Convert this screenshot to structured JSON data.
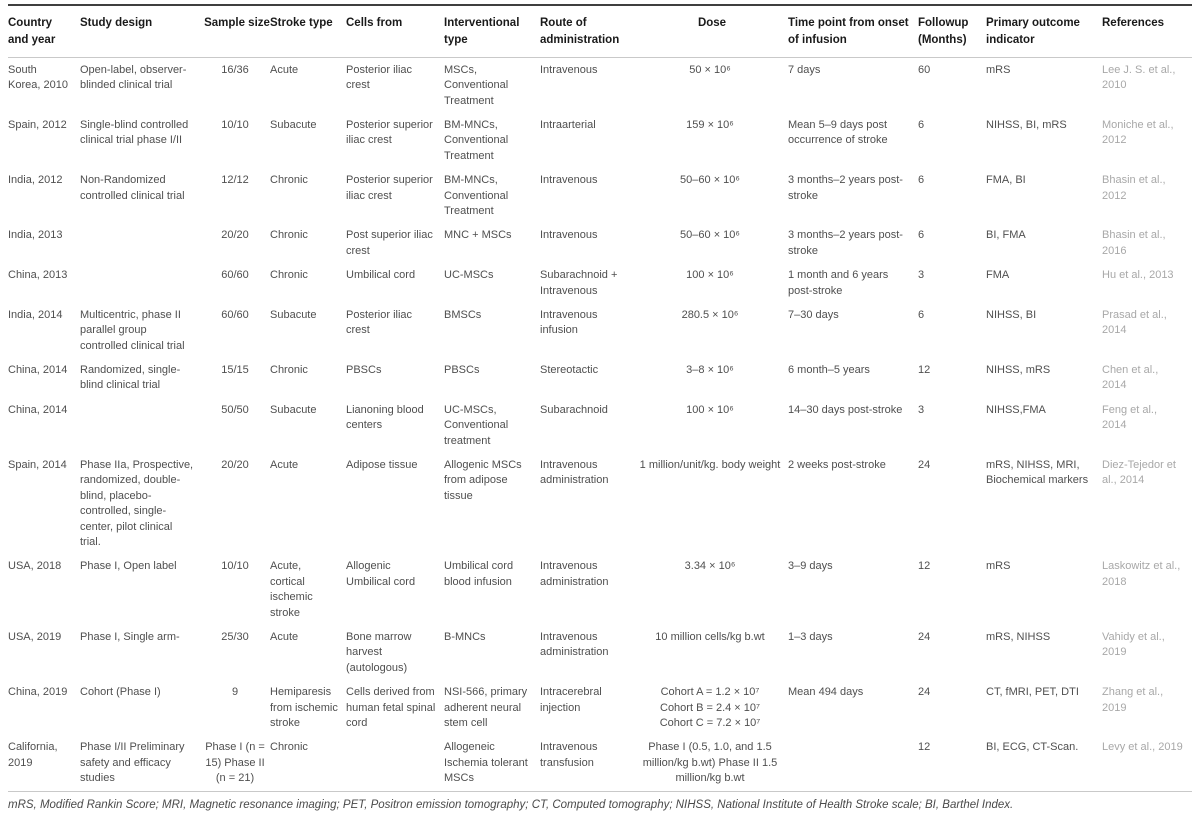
{
  "table": {
    "columns": [
      {
        "label": "Country and year",
        "key": "country-and-year",
        "align": "left"
      },
      {
        "label": "Study design",
        "key": "study-design",
        "align": "left"
      },
      {
        "label": "Sample size",
        "key": "sample-size",
        "align": "center"
      },
      {
        "label": "Stroke type",
        "key": "stroke-type",
        "align": "left"
      },
      {
        "label": "Cells from",
        "key": "cells-from",
        "align": "left"
      },
      {
        "label": "Interventional type",
        "key": "interventional-type",
        "align": "left"
      },
      {
        "label": "Route of administration",
        "key": "route-of-administration",
        "align": "left"
      },
      {
        "label": "Dose",
        "key": "dose",
        "align": "center"
      },
      {
        "label": "Time point from onset of infusion",
        "key": "time-point-from-onset-of-infusion",
        "align": "left"
      },
      {
        "label": "Followup (Months)",
        "key": "followup-months",
        "align": "left"
      },
      {
        "label": "Primary outcome indicator",
        "key": "primary-outcome-indicator",
        "align": "left"
      },
      {
        "label": "References",
        "key": "references",
        "align": "left"
      }
    ],
    "rows": [
      {
        "cells": [
          "South Korea, 2010",
          "Open-label, observer-blinded clinical trial",
          "16/36",
          "Acute",
          "Posterior iliac crest",
          "MSCs, Conventional Treatment",
          "Intravenous",
          "50 × 10⁶",
          "7 days",
          "60",
          "mRS",
          "Lee J. S. et al., 2010"
        ]
      },
      {
        "cells": [
          "Spain, 2012",
          "Single-blind controlled clinical trial phase I/II",
          "10/10",
          "Subacute",
          "Posterior superior iliac crest",
          "BM-MNCs, Conventional Treatment",
          "Intraarterial",
          "159 × 10⁶",
          "Mean 5–9 days post occurrence of stroke",
          "6",
          "NIHSS, BI, mRS",
          "Moniche et al., 2012"
        ]
      },
      {
        "cells": [
          "India, 2012",
          "Non-Randomized controlled clinical trial",
          "12/12",
          "Chronic",
          "Posterior superior iliac crest",
          "BM-MNCs, Conventional Treatment",
          "Intravenous",
          "50–60 × 10⁶",
          "3 months–2 years post-stroke",
          "6",
          "FMA, BI",
          "Bhasin et al., 2012"
        ]
      },
      {
        "cells": [
          "India, 2013",
          "",
          "20/20",
          "Chronic",
          "Post superior iliac crest",
          "MNC + MSCs",
          "Intravenous",
          "50–60 × 10⁶",
          "3 months–2 years post-stroke",
          "6",
          "BI, FMA",
          "Bhasin et al., 2016"
        ]
      },
      {
        "cells": [
          "China, 2013",
          "",
          "60/60",
          "Chronic",
          "Umbilical cord",
          "UC-MSCs",
          "Subarachnoid + Intravenous",
          "100 × 10⁶",
          "1 month and 6 years post-stroke",
          "3",
          "FMA",
          "Hu et al., 2013"
        ]
      },
      {
        "cells": [
          "India, 2014",
          "Multicentric, phase II parallel group controlled clinical trial",
          "60/60",
          "Subacute",
          "Posterior iliac crest",
          "BMSCs",
          "Intravenous infusion",
          "280.5 × 10⁶",
          "7–30 days",
          "6",
          "NIHSS, BI",
          "Prasad et al., 2014"
        ]
      },
      {
        "cells": [
          "China, 2014",
          "Randomized, single-blind clinical trial",
          "15/15",
          "Chronic",
          "PBSCs",
          "PBSCs",
          "Stereotactic",
          "3–8 × 10⁶",
          "6 month–5 years",
          "12",
          "NIHSS, mRS",
          "Chen et al., 2014"
        ]
      },
      {
        "cells": [
          "China, 2014",
          "",
          "50/50",
          "Subacute",
          "Lianoning blood centers",
          "UC-MSCs, Conventional treatment",
          "Subarachnoid",
          "100 × 10⁶",
          "14–30 days post-stroke",
          "3",
          "NIHSS,FMA",
          "Feng et al., 2014"
        ]
      },
      {
        "cells": [
          "Spain, 2014",
          "Phase IIa, Prospective, randomized, double-blind, placebo-controlled, single-center, pilot clinical trial.",
          "20/20",
          "Acute",
          "Adipose tissue",
          "Allogenic MSCs from adipose tissue",
          "Intravenous administration",
          "1 million/unit/kg. body weight",
          "2 weeks post-stroke",
          "24",
          "mRS, NIHSS, MRI, Biochemical markers",
          "Diez-Tejedor et al., 2014"
        ]
      },
      {
        "cells": [
          "USA, 2018",
          "Phase I, Open label",
          "10/10",
          "Acute, cortical ischemic stroke",
          "Allogenic Umbilical cord",
          "Umbilical cord blood infusion",
          "Intravenous administration",
          "3.34 × 10⁶",
          "3–9 days",
          "12",
          "mRS",
          "Laskowitz et al., 2018"
        ]
      },
      {
        "cells": [
          "USA, 2019",
          "Phase I, Single arm-",
          "25/30",
          "Acute",
          "Bone marrow harvest (autologous)",
          "B-MNCs",
          "Intravenous administration",
          "10 million cells/kg b.wt",
          "1–3 days",
          "24",
          "mRS, NIHSS",
          "Vahidy et al., 2019"
        ]
      },
      {
        "cells": [
          "China, 2019",
          "Cohort (Phase I)",
          "9",
          "Hemiparesis from ischemic stroke",
          "Cells derived from human fetal spinal cord",
          "NSI-566, primary adherent neural stem cell",
          "Intracerebral injection",
          "Cohort A = 1.2 × 10⁷\nCohort B = 2.4 × 10⁷\nCohort C = 7.2 × 10⁷",
          "Mean 494 days",
          "24",
          "CT, fMRI, PET, DTI",
          "Zhang et al., 2019"
        ]
      },
      {
        "cells": [
          "California, 2019",
          "Phase I/II Preliminary safety and efficacy studies",
          "Phase I (n = 15) Phase II (n = 21)",
          "Chronic",
          "",
          "Allogeneic Ischemia tolerant MSCs",
          "Intravenous transfusion",
          "Phase I (0.5, 1.0, and 1.5 million/kg b.wt) Phase II 1.5 million/kg b.wt",
          "",
          "12",
          "BI, ECG, CT-Scan.",
          "Levy et al., 2019"
        ]
      }
    ],
    "footnote": "mRS, Modified Rankin Score; MRI, Magnetic resonance imaging; PET, Positron emission tomography; CT, Computed tomography; NIHSS, National Institute of Health Stroke scale; BI, Barthel Index.",
    "colors": {
      "header_text": "#1a1a1a",
      "body_text": "#4f4f4f",
      "reference_text": "#a8a8a8",
      "rule_dark": "#3f3f3f",
      "rule_light": "#c9c9c9"
    }
  }
}
